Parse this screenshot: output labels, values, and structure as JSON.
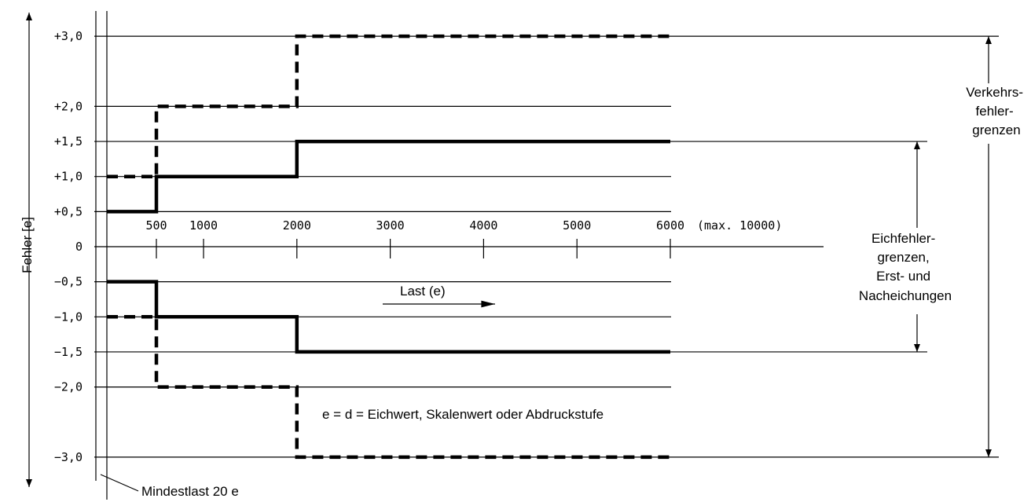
{
  "chart_data": {
    "type": "line",
    "ylabel": "Fehler [e]",
    "y_ticks": [
      {
        "value": 3.0,
        "label": "+3,0"
      },
      {
        "value": 2.0,
        "label": "+2,0"
      },
      {
        "value": 1.5,
        "label": "+1,5"
      },
      {
        "value": 1.0,
        "label": "+1,0"
      },
      {
        "value": 0.5,
        "label": "+0,5"
      },
      {
        "value": 0,
        "label": "0"
      },
      {
        "value": -0.5,
        "label": "−0,5"
      },
      {
        "value": -1.0,
        "label": "−1,0"
      },
      {
        "value": -1.5,
        "label": "−1,5"
      },
      {
        "value": -2.0,
        "label": "−2,0"
      },
      {
        "value": -3.0,
        "label": "−3,0"
      }
    ],
    "x_ticks": [
      {
        "value": 500,
        "label": "500"
      },
      {
        "value": 1000,
        "label": "1000"
      },
      {
        "value": 2000,
        "label": "2000"
      },
      {
        "value": 3000,
        "label": "3000"
      },
      {
        "value": 4000,
        "label": "4000"
      },
      {
        "value": 5000,
        "label": "5000"
      },
      {
        "value": 6000,
        "label": "6000"
      }
    ],
    "x_max_note": "(max. 10000)",
    "x_direction_label": "Last (e)",
    "min_load_label": "Mindestlast 20 e",
    "definition_note": "e = d = Eichwert, Skalenwert oder Abdruckstufe",
    "series": [
      {
        "style": "dashed",
        "points": [
          [
            20,
            1.0
          ],
          [
            500,
            1.0
          ],
          [
            500,
            2.0
          ],
          [
            2000,
            2.0
          ],
          [
            2000,
            3.0
          ],
          [
            6000,
            3.0
          ]
        ]
      },
      {
        "style": "dashed",
        "points": [
          [
            20,
            -1.0
          ],
          [
            500,
            -1.0
          ],
          [
            500,
            -2.0
          ],
          [
            2000,
            -2.0
          ],
          [
            2000,
            -3.0
          ],
          [
            6000,
            -3.0
          ]
        ]
      },
      {
        "style": "solid",
        "points": [
          [
            20,
            0.5
          ],
          [
            500,
            0.5
          ],
          [
            500,
            1.0
          ],
          [
            2000,
            1.0
          ],
          [
            2000,
            1.5
          ],
          [
            6000,
            1.5
          ]
        ]
      },
      {
        "style": "solid",
        "points": [
          [
            20,
            -0.5
          ],
          [
            500,
            -0.5
          ],
          [
            500,
            -1.0
          ],
          [
            2000,
            -1.0
          ],
          [
            2000,
            -1.5
          ],
          [
            6000,
            -1.5
          ]
        ]
      }
    ],
    "annotations": {
      "verkehrs_lines": [
        "Verkehrs-",
        "fehler-",
        "grenzen"
      ],
      "eich_lines": [
        "Eichfehler-",
        "grenzen,",
        "Erst- und",
        "Nacheichungen"
      ]
    },
    "grid": true
  }
}
